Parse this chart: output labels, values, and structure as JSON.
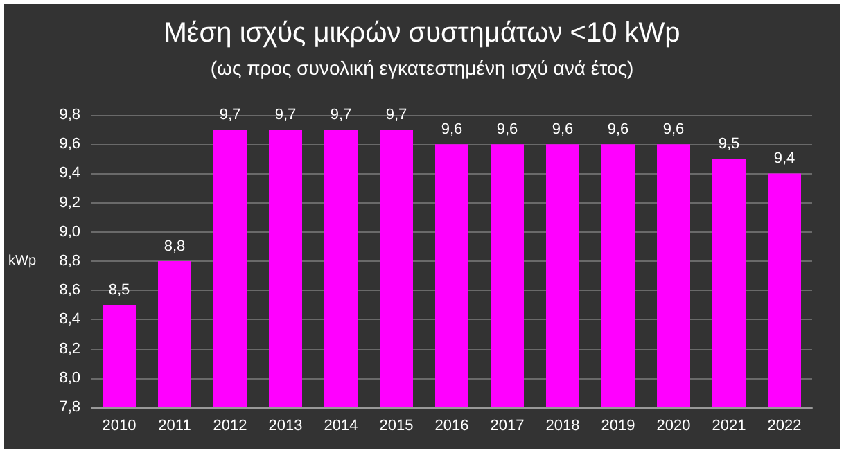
{
  "chart_data": {
    "type": "bar",
    "title": "Μέση ισχύς μικρών συστημάτων <10 kWp",
    "subtitle": "(ως προς συνολική εγκατεστημένη ισχύ ανά έτος)",
    "ylabel": "kWp",
    "categories": [
      "2010",
      "2011",
      "2012",
      "2013",
      "2014",
      "2015",
      "2016",
      "2017",
      "2018",
      "2019",
      "2020",
      "2021",
      "2022"
    ],
    "values": [
      8.5,
      8.8,
      9.7,
      9.7,
      9.7,
      9.7,
      9.6,
      9.6,
      9.6,
      9.6,
      9.6,
      9.5,
      9.4
    ],
    "value_labels": [
      "8,5",
      "8,8",
      "9,7",
      "9,7",
      "9,7",
      "9,7",
      "9,6",
      "9,6",
      "9,6",
      "9,6",
      "9,6",
      "9,5",
      "9,4"
    ],
    "color": "#ff00ff",
    "ylim": [
      7.8,
      9.8
    ],
    "yticks": [
      {
        "value": 7.8,
        "label": "7,8"
      },
      {
        "value": 8.0,
        "label": "8,0"
      },
      {
        "value": 8.2,
        "label": "8,2"
      },
      {
        "value": 8.4,
        "label": "8,4"
      },
      {
        "value": 8.6,
        "label": "8,6"
      },
      {
        "value": 8.8,
        "label": "8,8"
      },
      {
        "value": 9.0,
        "label": "9,0"
      },
      {
        "value": 9.2,
        "label": "9,2"
      },
      {
        "value": 9.4,
        "label": "9,4"
      },
      {
        "value": 9.6,
        "label": "9,6"
      },
      {
        "value": 9.8,
        "label": "9,8"
      }
    ],
    "grid": "y"
  }
}
